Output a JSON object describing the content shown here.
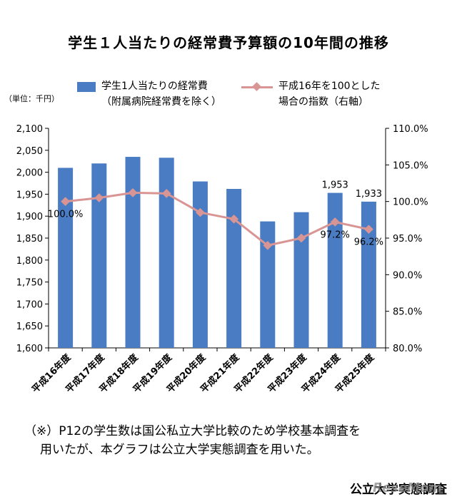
{
  "title": "学生１人当たりの経常費予算額の10年間の推移",
  "unit_label": "（単位：千円）",
  "legend": {
    "bar_label_line1": "学生1人当たりの経常費",
    "bar_label_line2": "（附属病院経常費を除く）",
    "line_label_line1": "平成16年を100とした",
    "line_label_line2": "場合の指数（右軸）"
  },
  "chart_data": {
    "type": "bar",
    "categories": [
      "平成16年度",
      "平成17年度",
      "平成18年度",
      "平成19年度",
      "平成20年度",
      "平成21年度",
      "平成22年度",
      "平成23年度",
      "平成24年度",
      "平成25年度"
    ],
    "series": [
      {
        "name": "学生1人当たりの経常費（附属病院経常費を除く）",
        "type": "bar",
        "axis": "left",
        "values": [
          2010,
          2020,
          2035,
          2033,
          1979,
          1962,
          1888,
          1909,
          1953,
          1933
        ]
      },
      {
        "name": "平成16年を100とした場合の指数（右軸）",
        "type": "line",
        "axis": "right",
        "values": [
          100.0,
          100.5,
          101.2,
          101.1,
          98.5,
          97.6,
          94.0,
          95.0,
          97.2,
          96.2
        ]
      }
    ],
    "y_left": {
      "min": 1600,
      "max": 2100,
      "ticks": [
        "1,600",
        "1,650",
        "1,700",
        "1,750",
        "1,800",
        "1,850",
        "1,900",
        "1,950",
        "2,000",
        "2,050",
        "2,100"
      ]
    },
    "y_right": {
      "min": 80,
      "max": 110,
      "ticks": [
        "80.0%",
        "85.0%",
        "90.0%",
        "95.0%",
        "100.0%",
        "105.0%",
        "110.0%"
      ]
    },
    "bar_data_labels": {
      "8": "1,953",
      "9": "1,933"
    },
    "line_data_labels": {
      "0": "100.0%",
      "8": "97.2%",
      "9": "96.2%"
    },
    "grid": false,
    "colors": {
      "bar": "#4a7cc3",
      "line": "#d99594"
    }
  },
  "note_line1": "（※）P12の学生数は国公私立大学比較のため学校基本調査を",
  "note_line2": "用いたが、本グラフは公立大学実態調査を用いた。",
  "source": "公立大学実態調査",
  "watermark": "ReseMom"
}
